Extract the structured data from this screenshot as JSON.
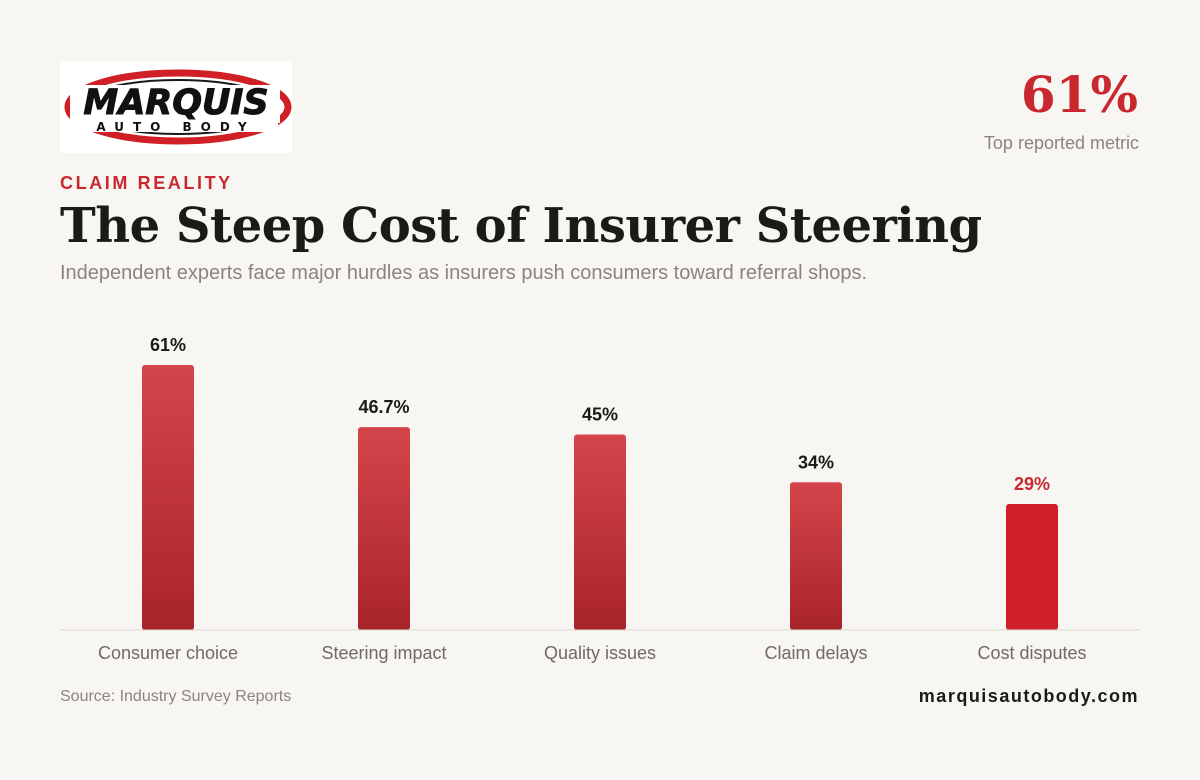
{
  "brand": {
    "logo_main": "MARQUIS",
    "logo_sub": "AUTO BODY",
    "website": "marquisautobody.com"
  },
  "header": {
    "kicker": "CLAIM REALITY",
    "title": "The Steep Cost of Insurer Steering",
    "subtitle": "Independent experts face major hurdles as insurers push consumers toward referral shops."
  },
  "headline": {
    "value": "61%",
    "label": "Top reported metric"
  },
  "footer": {
    "source": "Source: Industry Survey Reports"
  },
  "colors": {
    "accent": "#c8282e",
    "bar_top": "#d4454b",
    "bar_bottom": "#a8242a",
    "highlight_bar": "#d0212a",
    "value_label": "#1c1a17",
    "highlight_label": "#c8282e",
    "axis": "#dcd8d2",
    "category_label": "#6f6a63"
  },
  "chart_data": {
    "type": "bar",
    "categories": [
      "Consumer choice",
      "Steering impact",
      "Quality issues",
      "Claim delays",
      "Cost disputes"
    ],
    "values": [
      61,
      46.7,
      45,
      34,
      29
    ],
    "value_labels": [
      "61%",
      "46.7%",
      "45%",
      "34%",
      "29%"
    ],
    "highlight_index": 4,
    "ylim": [
      0,
      61
    ],
    "grid": false,
    "legend": "none"
  }
}
